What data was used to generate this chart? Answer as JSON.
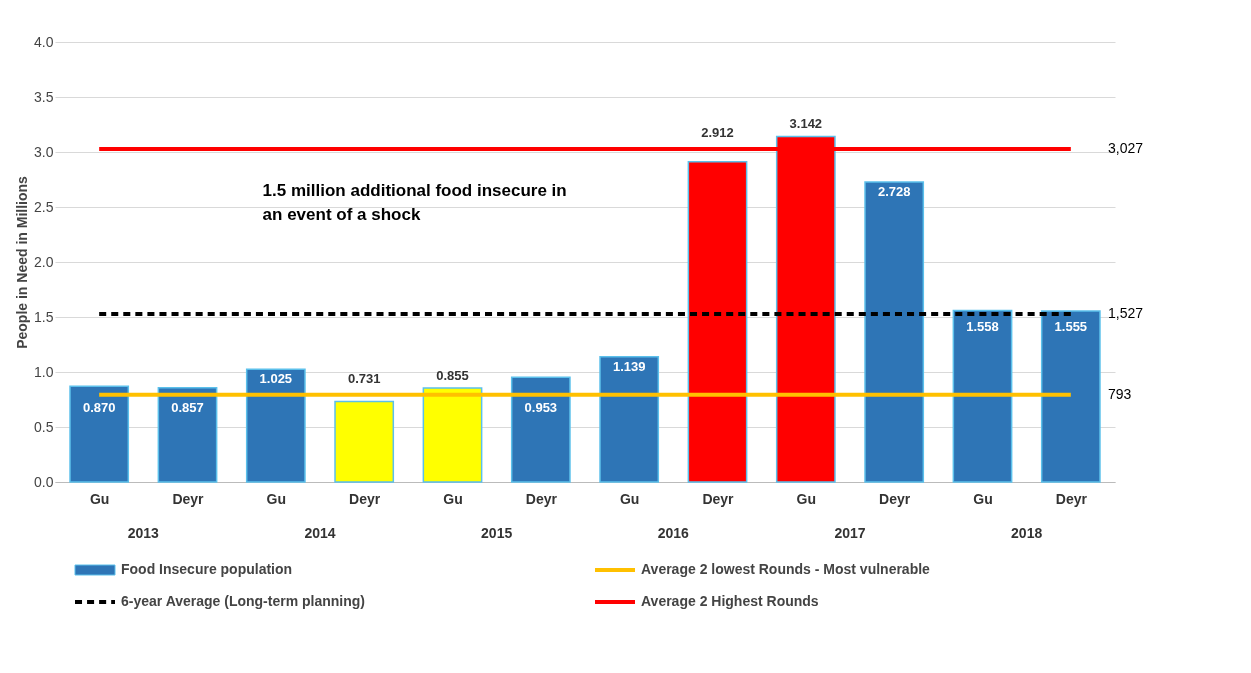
{
  "chart_data": {
    "type": "bar",
    "ylabel": "People in Need in Millions",
    "categories": [
      "Gu",
      "Deyr",
      "Gu",
      "Deyr",
      "Gu",
      "Deyr",
      "Gu",
      "Deyr",
      "Gu",
      "Deyr",
      "Gu",
      "Deyr"
    ],
    "ylim": [
      0,
      4
    ],
    "yticks": [
      {
        "value": 0,
        "label": "0.0"
      },
      {
        "value": 0.5,
        "label": "0.5"
      },
      {
        "value": 1,
        "label": "1.0"
      },
      {
        "value": 1.5,
        "label": "1.5"
      },
      {
        "value": 2,
        "label": "2.0"
      },
      {
        "value": 2.5,
        "label": "2.5"
      },
      {
        "value": 3,
        "label": "3.0"
      },
      {
        "value": 3.5,
        "label": "3.5"
      },
      {
        "value": 4,
        "label": "4.0"
      }
    ],
    "grid": "y",
    "legend": "bottom",
    "series": [
      {
        "name": "Food Insecure population",
        "values": [
          0.87,
          0.857,
          1.025,
          0.731,
          0.855,
          0.953,
          1.139,
          2.912,
          3.142,
          2.728,
          1.558,
          1.555
        ],
        "colors": [
          "#2e75b6",
          "#2e75b6",
          "#2e75b6",
          "#ffff00",
          "#ffff00",
          "#2e75b6",
          "#2e75b6",
          "#ff0000",
          "#ff0000",
          "#2e75b6",
          "#2e75b6",
          "#2e75b6"
        ],
        "value_labels": [
          "0.870",
          "0.857",
          "1.025",
          "0.731",
          "0.855",
          "0.953",
          "1.139",
          "2.912",
          "3.142",
          "2.728",
          "1.558",
          "1.555"
        ]
      },
      {
        "name": "Average 2 lowest Rounds - Most vulnerable",
        "type": "line",
        "color": "#ffc000",
        "line_style": "solid",
        "values": [
          0.793,
          0.793,
          0.793,
          0.793,
          0.793,
          0.793,
          0.793,
          0.793,
          0.793,
          0.793,
          0.793,
          0.793
        ]
      },
      {
        "name": "6-year Average (Long-term planning)",
        "type": "line",
        "color": "#000000",
        "line_style": "dashed",
        "values": [
          1.527,
          1.527,
          1.527,
          1.527,
          1.527,
          1.527,
          1.527,
          1.527,
          1.527,
          1.527,
          1.527,
          1.527
        ]
      },
      {
        "name": "Average 2 Highest Rounds",
        "type": "line",
        "color": "#ff0000",
        "line_style": "solid",
        "values": [
          3.027,
          3.027,
          3.027,
          3.027,
          3.027,
          3.027,
          3.027,
          3.027,
          3.027,
          3.027,
          3.027,
          3.027
        ]
      }
    ],
    "annotations": [
      "1.5 million additional food insecure in an event of a shock",
      "2013",
      "2014",
      "2015",
      "2016",
      "2017",
      "2018",
      "793",
      "1,527",
      "3,027"
    ]
  }
}
